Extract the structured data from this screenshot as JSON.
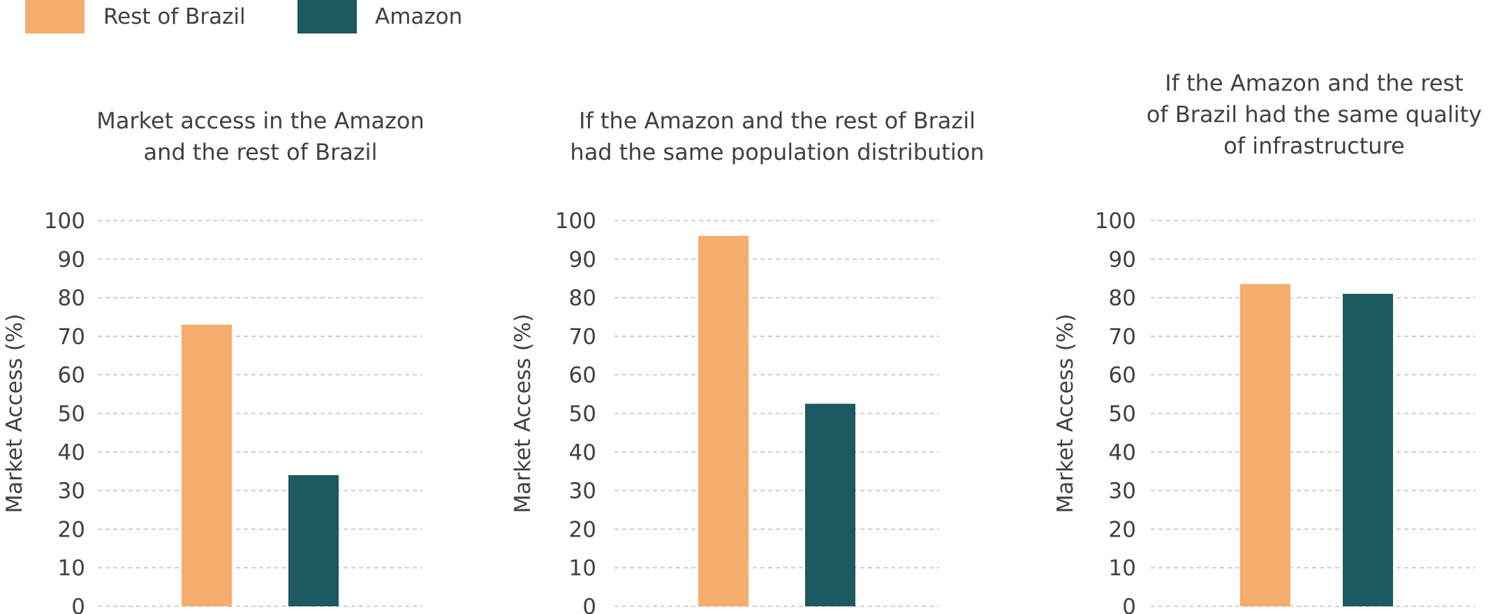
{
  "legend": [
    {
      "label": "Rest of Brazil",
      "color": "#F4AD6C"
    },
    {
      "label": "Amazon",
      "color": "#1C5960"
    }
  ],
  "chart_data": [
    {
      "type": "bar",
      "title": [
        "Market access in the Amazon",
        "and the rest of Brazil"
      ],
      "ylabel": "Market Access  (%)",
      "ylim": [
        0,
        100
      ],
      "yticks": [
        0,
        10,
        20,
        30,
        40,
        50,
        60,
        70,
        80,
        90,
        100
      ],
      "grid": true,
      "series": [
        {
          "name": "Rest of Brazil",
          "values": [
            73
          ]
        },
        {
          "name": "Amazon",
          "values": [
            34
          ]
        }
      ]
    },
    {
      "type": "bar",
      "title": [
        "If the Amazon and the rest of Brazil",
        "had the same population distribution"
      ],
      "ylabel": "Market Access  (%)",
      "ylim": [
        0,
        100
      ],
      "yticks": [
        0,
        10,
        20,
        30,
        40,
        50,
        60,
        70,
        80,
        90,
        100
      ],
      "grid": true,
      "series": [
        {
          "name": "Rest of Brazil",
          "values": [
            96
          ]
        },
        {
          "name": "Amazon",
          "values": [
            52.5
          ]
        }
      ]
    },
    {
      "type": "bar",
      "title": [
        "If the Amazon and the rest",
        "of Brazil had the same quality",
        "of infrastructure"
      ],
      "ylabel": "Market Access (%)",
      "ylim": [
        0,
        100
      ],
      "yticks": [
        0,
        10,
        20,
        30,
        40,
        50,
        60,
        70,
        80,
        90,
        100
      ],
      "grid": true,
      "series": [
        {
          "name": "Rest of Brazil",
          "values": [
            83.5
          ]
        },
        {
          "name": "Amazon",
          "values": [
            81
          ]
        }
      ]
    }
  ]
}
